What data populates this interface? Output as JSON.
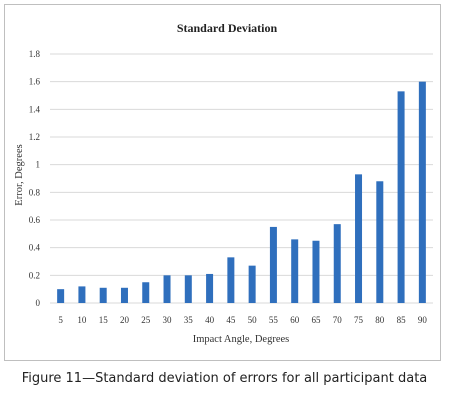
{
  "chart_data": {
    "type": "bar",
    "title": "Standard Deviation",
    "xlabel": "Impact Angle, Degrees",
    "ylabel": "Error, Degrees",
    "categories": [
      "5",
      "10",
      "15",
      "20",
      "25",
      "30",
      "35",
      "40",
      "45",
      "50",
      "55",
      "60",
      "65",
      "70",
      "75",
      "80",
      "85",
      "90"
    ],
    "values": [
      0.1,
      0.12,
      0.11,
      0.11,
      0.15,
      0.2,
      0.2,
      0.21,
      0.33,
      0.27,
      0.55,
      0.46,
      0.45,
      0.57,
      0.93,
      0.88,
      1.53,
      1.6
    ],
    "ylim": [
      0,
      1.8
    ],
    "yticks": [
      "0",
      "0.2",
      "0.4",
      "0.6",
      "0.8",
      "1",
      "1.2",
      "1.4",
      "1.6",
      "1.8"
    ],
    "grid": true,
    "bar_color": "#2f6fbd"
  },
  "caption": "Figure 11—Standard deviation of errors for all participant data"
}
